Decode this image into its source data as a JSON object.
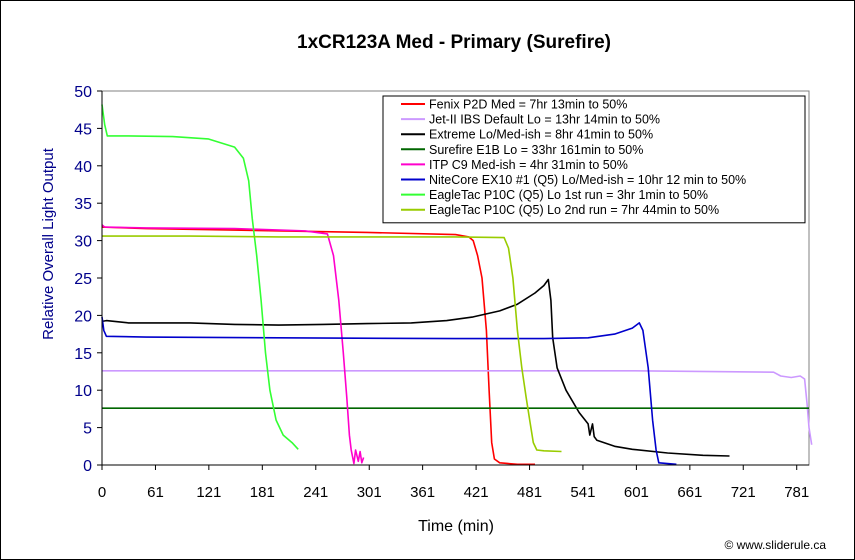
{
  "chart_data": {
    "type": "line",
    "title": "1xCR123A Med - Primary (Surefire)",
    "xlabel": "Time (min)",
    "ylabel": "Relative Overall Light Output",
    "xlim": [
      0,
      800
    ],
    "ylim": [
      0,
      50
    ],
    "x_ticks": [
      "0",
      "61",
      "121",
      "181",
      "241",
      "301",
      "361",
      "421",
      "481",
      "541",
      "601",
      "661",
      "721",
      "781"
    ],
    "x_tick_values": [
      0,
      60.5,
      120.9,
      181.4,
      241.9,
      302.4,
      362.8,
      423.3,
      483.8,
      544.2,
      604.7,
      665.2,
      725.6,
      786.1
    ],
    "y_ticks": [
      "0",
      "5",
      "10",
      "15",
      "20",
      "25",
      "30",
      "35",
      "40",
      "45",
      "50"
    ],
    "y_tick_values": [
      0,
      5,
      10,
      15,
      20,
      25,
      30,
      35,
      40,
      45,
      50
    ],
    "grid": false,
    "legend_position": "top-right",
    "credit": "© www.sliderule.ca",
    "series": [
      {
        "name": "Fenix P2D Med = 7hr 13min to 50%",
        "color": "#ff0000",
        "points": [
          [
            0,
            31.8
          ],
          [
            50,
            31.6
          ],
          [
            150,
            31.4
          ],
          [
            300,
            31.1
          ],
          [
            400,
            30.8
          ],
          [
            415,
            30.5
          ],
          [
            420,
            30
          ],
          [
            425,
            28
          ],
          [
            430,
            25
          ],
          [
            435,
            18
          ],
          [
            438,
            10
          ],
          [
            441,
            3
          ],
          [
            444,
            0.8
          ],
          [
            450,
            0.3
          ],
          [
            470,
            0.1
          ],
          [
            490,
            0.1
          ]
        ]
      },
      {
        "name": "Jet-II IBS Default Lo = 13hr 14min to 50%",
        "color": "#cc99ff",
        "points": [
          [
            0,
            12.6
          ],
          [
            200,
            12.6
          ],
          [
            400,
            12.6
          ],
          [
            600,
            12.6
          ],
          [
            760,
            12.4
          ],
          [
            768,
            11.9
          ],
          [
            780,
            11.7
          ],
          [
            790,
            11.9
          ],
          [
            795,
            11.5
          ],
          [
            798,
            8
          ],
          [
            800,
            5
          ],
          [
            803,
            2.7
          ]
        ]
      },
      {
        "name": "Extreme Lo/Med-ish = 8hr 41min to 50%",
        "color": "#000000",
        "points": [
          [
            0,
            19.2
          ],
          [
            5,
            19.3
          ],
          [
            30,
            19
          ],
          [
            100,
            19
          ],
          [
            150,
            18.8
          ],
          [
            200,
            18.7
          ],
          [
            250,
            18.8
          ],
          [
            300,
            18.9
          ],
          [
            350,
            19
          ],
          [
            390,
            19.3
          ],
          [
            420,
            19.8
          ],
          [
            450,
            20.6
          ],
          [
            470,
            21.5
          ],
          [
            490,
            23
          ],
          [
            500,
            24
          ],
          [
            505,
            24.8
          ],
          [
            508,
            22
          ],
          [
            510,
            17
          ],
          [
            515,
            13
          ],
          [
            525,
            10
          ],
          [
            540,
            7
          ],
          [
            550,
            5.5
          ],
          [
            552,
            4
          ],
          [
            555,
            5.5
          ],
          [
            557,
            3.8
          ],
          [
            560,
            3.3
          ],
          [
            580,
            2.5
          ],
          [
            600,
            2.1
          ],
          [
            640,
            1.6
          ],
          [
            680,
            1.3
          ],
          [
            710,
            1.2
          ]
        ]
      },
      {
        "name": "Surefire E1B Lo = 33hr 161min to 50%",
        "color": "#006600",
        "points": [
          [
            0,
            7.6
          ],
          [
            200,
            7.6
          ],
          [
            400,
            7.6
          ],
          [
            600,
            7.6
          ],
          [
            800,
            7.6
          ]
        ]
      },
      {
        "name": "ITP C9 Med-ish = 4hr 31min to 50%",
        "color": "#ff00cc",
        "points": [
          [
            0,
            32.1
          ],
          [
            3,
            31.8
          ],
          [
            50,
            31.7
          ],
          [
            150,
            31.6
          ],
          [
            230,
            31.3
          ],
          [
            255,
            30.9
          ],
          [
            262,
            28
          ],
          [
            268,
            22
          ],
          [
            273,
            15
          ],
          [
            277,
            9
          ],
          [
            280,
            4
          ],
          [
            282,
            2
          ],
          [
            285,
            0.2
          ],
          [
            287,
            2
          ],
          [
            290,
            0.5
          ],
          [
            292,
            1.8
          ],
          [
            294,
            0.3
          ],
          [
            296,
            1
          ]
        ]
      },
      {
        "name": "NiteCore EX10 #1 (Q5) Lo/Med-ish = 10hr 12 min to 50%",
        "color": "#0000cc",
        "points": [
          [
            0,
            19.8
          ],
          [
            2,
            18
          ],
          [
            5,
            17.2
          ],
          [
            50,
            17.1
          ],
          [
            200,
            17
          ],
          [
            400,
            16.9
          ],
          [
            500,
            16.9
          ],
          [
            550,
            17
          ],
          [
            580,
            17.5
          ],
          [
            600,
            18.3
          ],
          [
            608,
            19
          ],
          [
            612,
            18
          ],
          [
            618,
            13
          ],
          [
            623,
            6
          ],
          [
            627,
            2
          ],
          [
            630,
            0.3
          ],
          [
            650,
            0.1
          ]
        ]
      },
      {
        "name": "EagleTac P10C (Q5) Lo 1st run = 3hr 1min to 50%",
        "color": "#33ff33",
        "points": [
          [
            0,
            48.2
          ],
          [
            3,
            45.5
          ],
          [
            6,
            44
          ],
          [
            30,
            44
          ],
          [
            80,
            43.9
          ],
          [
            120,
            43.6
          ],
          [
            150,
            42.5
          ],
          [
            160,
            41
          ],
          [
            166,
            38
          ],
          [
            170,
            33
          ],
          [
            175,
            28
          ],
          [
            180,
            22
          ],
          [
            185,
            15
          ],
          [
            190,
            10
          ],
          [
            197,
            6
          ],
          [
            205,
            4
          ],
          [
            215,
            3
          ],
          [
            222,
            2.1
          ]
        ]
      },
      {
        "name": "EagleTac P10C (Q5) Lo 2nd run = 7hr 44min to 50%",
        "color": "#99cc00",
        "points": [
          [
            0,
            30.6
          ],
          [
            100,
            30.6
          ],
          [
            200,
            30.5
          ],
          [
            300,
            30.5
          ],
          [
            400,
            30.5
          ],
          [
            455,
            30.4
          ],
          [
            460,
            29
          ],
          [
            465,
            25
          ],
          [
            470,
            18
          ],
          [
            475,
            13
          ],
          [
            480,
            9
          ],
          [
            484,
            6
          ],
          [
            488,
            3
          ],
          [
            492,
            2
          ],
          [
            500,
            1.9
          ],
          [
            520,
            1.8
          ]
        ]
      }
    ]
  }
}
